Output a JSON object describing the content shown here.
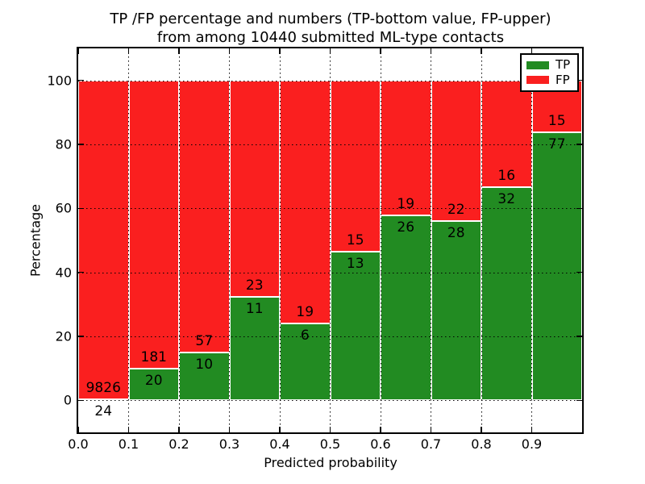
{
  "chart_data": {
    "type": "bar",
    "stacked": true,
    "title_line1": "TP /FP percentage and numbers (TP-bottom value, FP-upper)",
    "title_line2": "from among 10440 submitted ML-type contacts",
    "xlabel": "Predicted probability",
    "ylabel": "Percentage",
    "xlim": [
      0.0,
      1.0
    ],
    "ylim": [
      -10,
      110
    ],
    "x_ticks": [
      "0.0",
      "0.1",
      "0.2",
      "0.3",
      "0.4",
      "0.5",
      "0.6",
      "0.7",
      "0.8",
      "0.9"
    ],
    "y_ticks": [
      0,
      20,
      40,
      60,
      80,
      100
    ],
    "grid": true,
    "grid_style": "dotted",
    "total_contacts": 10440,
    "note": "bars show TP percentage (green, bottom) stacked with FP percentage (red, top); numeric labels are raw counts, TP below boundary, FP above",
    "bins": [
      {
        "range": [
          0.0,
          0.1
        ],
        "tp": 24,
        "fp": 9826
      },
      {
        "range": [
          0.1,
          0.2
        ],
        "tp": 20,
        "fp": 181
      },
      {
        "range": [
          0.2,
          0.3
        ],
        "tp": 10,
        "fp": 57
      },
      {
        "range": [
          0.3,
          0.4
        ],
        "tp": 11,
        "fp": 23
      },
      {
        "range": [
          0.4,
          0.5
        ],
        "tp": 6,
        "fp": 19
      },
      {
        "range": [
          0.5,
          0.6
        ],
        "tp": 13,
        "fp": 15
      },
      {
        "range": [
          0.6,
          0.7
        ],
        "tp": 26,
        "fp": 19
      },
      {
        "range": [
          0.7,
          0.8
        ],
        "tp": 28,
        "fp": 22
      },
      {
        "range": [
          0.8,
          0.9
        ],
        "tp": 32,
        "fp": 16
      },
      {
        "range": [
          0.9,
          1.0
        ],
        "tp": 77,
        "fp": 15
      }
    ],
    "colors": {
      "tp": "#228b22",
      "fp": "#fa1f1f"
    },
    "legend": {
      "position": "upper right",
      "entries": [
        {
          "label": "TP",
          "color": "#228b22"
        },
        {
          "label": "FP",
          "color": "#fa1f1f"
        }
      ]
    }
  }
}
